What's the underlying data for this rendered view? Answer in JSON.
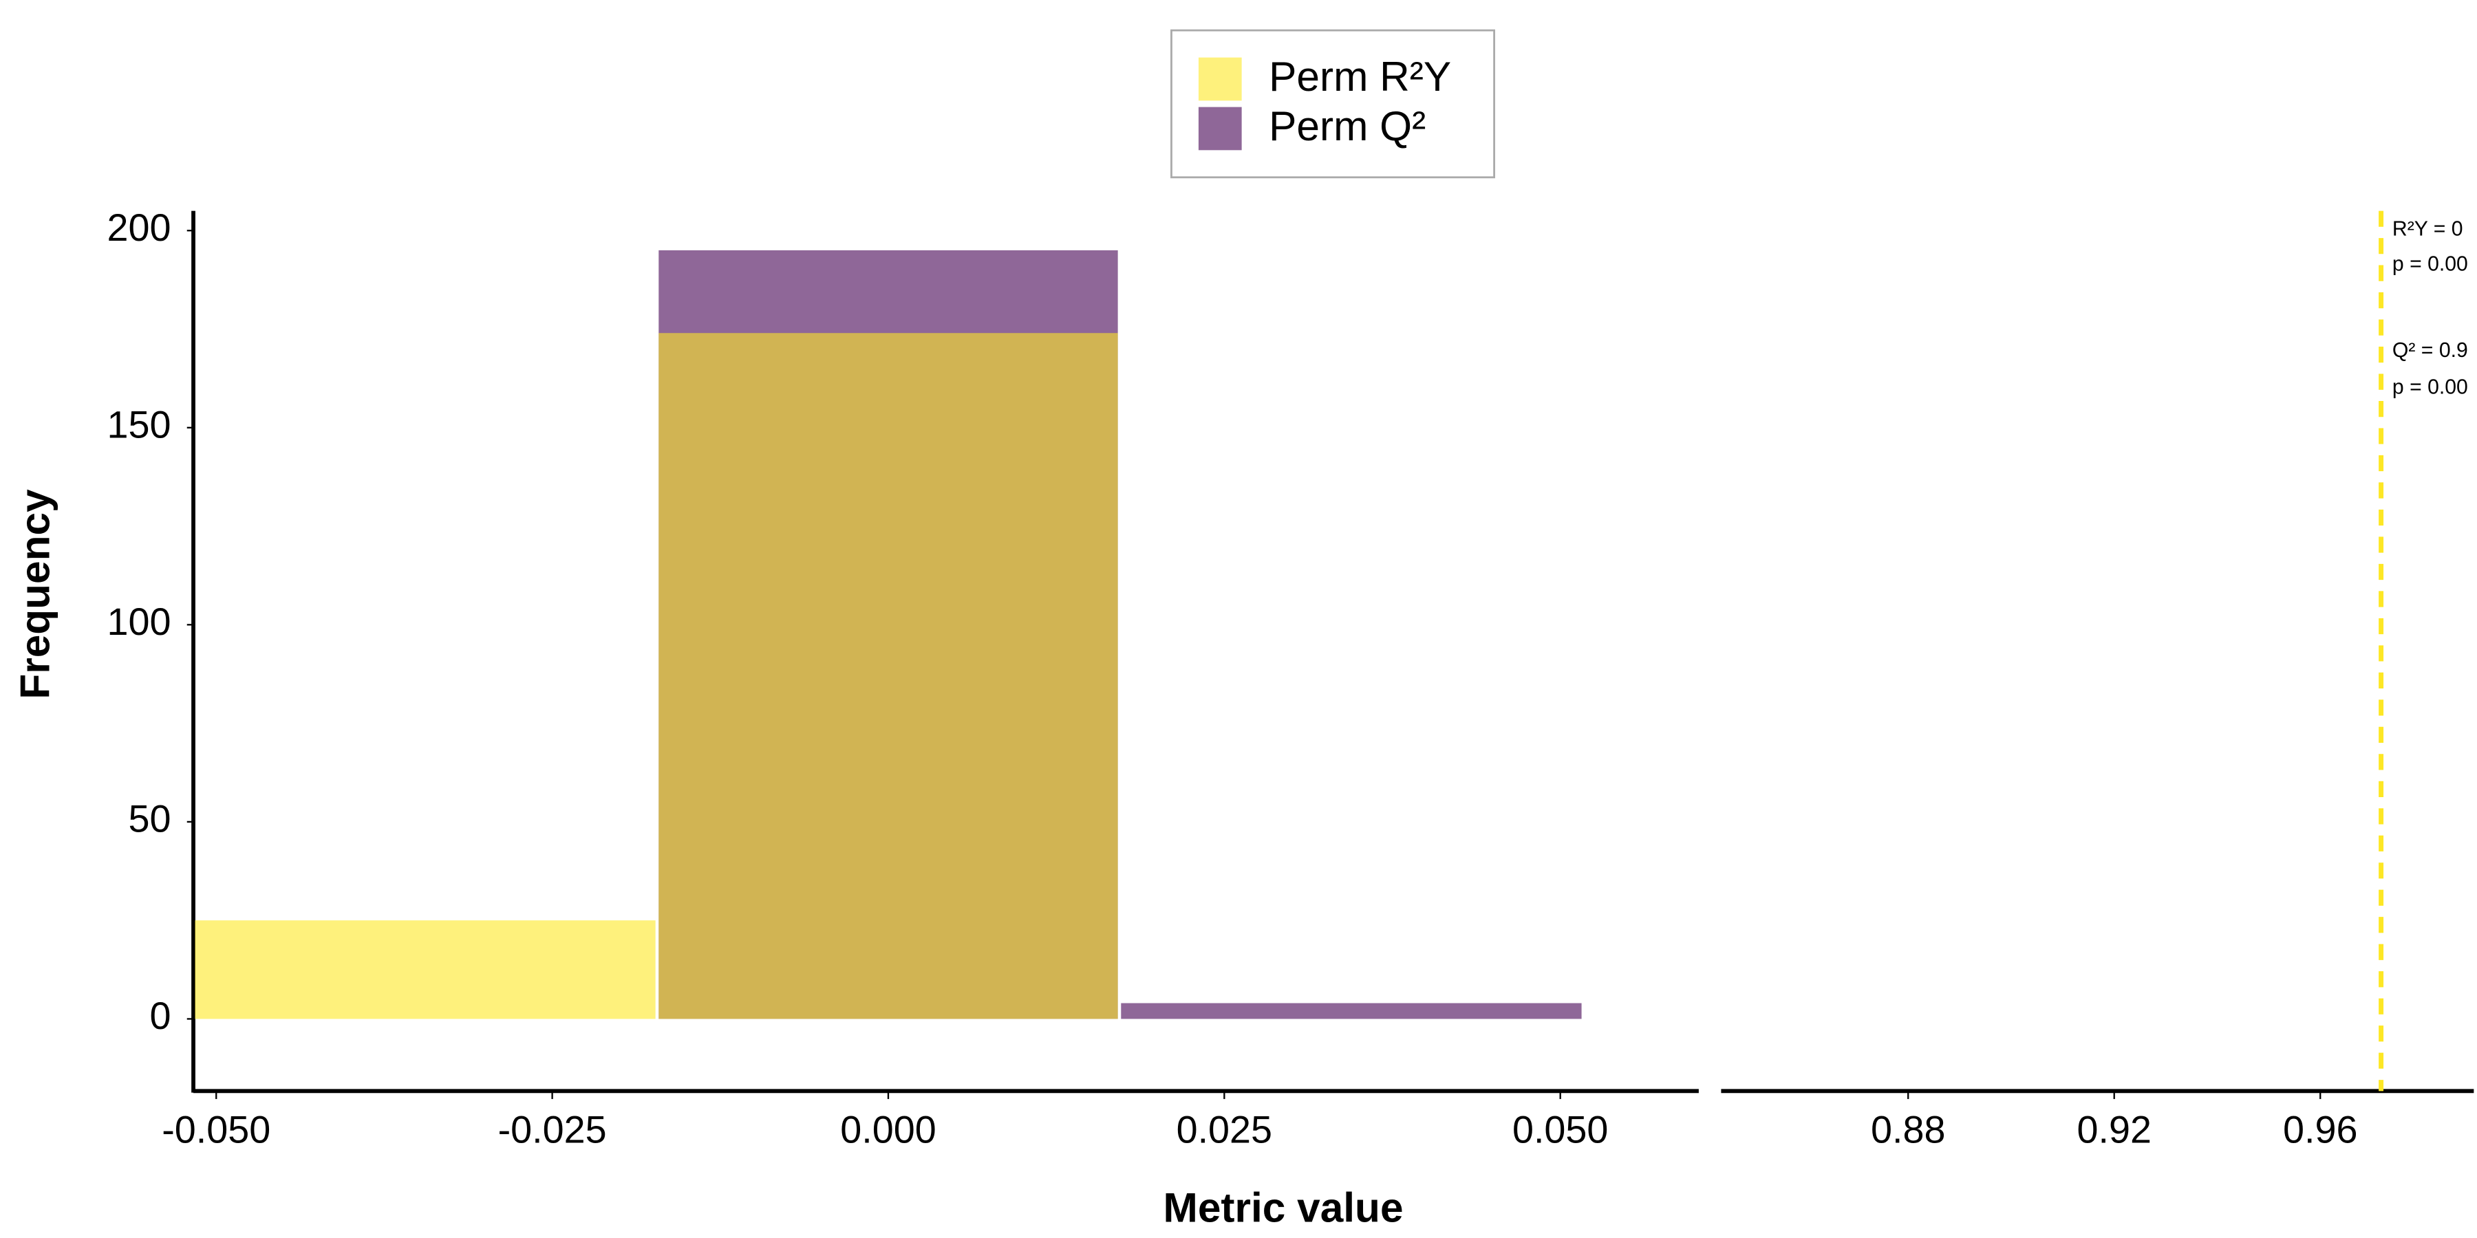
{
  "chart_data": {
    "type": "histogram",
    "xlabel": "Metric value",
    "ylabel": "Frequency",
    "bins": [
      -0.0517,
      -0.0172,
      0.0172,
      0.0517
    ],
    "series": [
      {
        "name": "Perm R²Y",
        "color": "#FDE725",
        "values": [
          25,
          174,
          0
        ]
      },
      {
        "name": "Perm Q²",
        "color": "#440154",
        "values": [
          0,
          195,
          4
        ]
      }
    ],
    "alpha": 0.6,
    "ylim": [
      -18.3,
      205
    ],
    "yticks": [
      0,
      50,
      100,
      150,
      200
    ],
    "panels": [
      {
        "xlim": [
          -0.0517,
          0.0603
        ],
        "xticks": [
          {
            "value": -0.05,
            "label": "-0.050"
          },
          -0.025,
          {
            "value": 0,
            "label": "0.000"
          },
          0.025,
          {
            "value": 0.05,
            "label": "0.050"
          }
        ]
      },
      {
        "xlim": [
          0.8437,
          0.9898
        ],
        "xticks": [
          0.88,
          0.92,
          0.96
        ]
      }
    ],
    "ref_lines": [
      {
        "value": 0.9718,
        "color": "#FDE725"
      }
    ],
    "annotations": [
      {
        "text": "R²Y = 0",
        "color": "#440154"
      },
      {
        "text": "p = 0.00",
        "color": "#440154"
      },
      {
        "text": "Q² = 0.9",
        "color": "#FDE725"
      },
      {
        "text": "p = 0.00",
        "color": "#FDE725"
      }
    ],
    "legend": "top"
  }
}
